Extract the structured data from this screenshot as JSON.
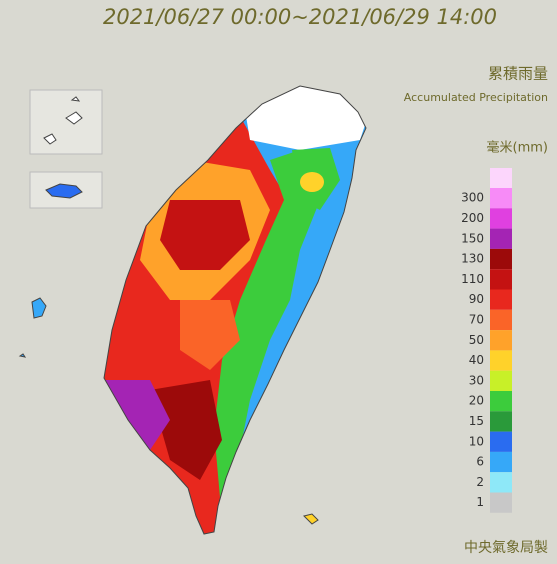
{
  "header": {
    "title": "2021/06/27 00:00~2021/06/29 14:00",
    "label_zh": "累積雨量",
    "label_en": "Accumulated Precipitation",
    "unit": "毫米(mm)"
  },
  "legend": {
    "items": [
      {
        "value": 300,
        "color": "#f78bf7"
      },
      {
        "value": 200,
        "color": "#e040e0"
      },
      {
        "value": 150,
        "color": "#a424b4"
      },
      {
        "value": 130,
        "color": "#9c0a0a"
      },
      {
        "value": 110,
        "color": "#c41212"
      },
      {
        "value": 90,
        "color": "#e8281e"
      },
      {
        "value": 70,
        "color": "#fa6428"
      },
      {
        "value": 50,
        "color": "#ffa22a"
      },
      {
        "value": 40,
        "color": "#ffd22a"
      },
      {
        "value": 30,
        "color": "#c8f028"
      },
      {
        "value": 20,
        "color": "#3ccc3c"
      },
      {
        "value": 15,
        "color": "#2a9a3a"
      },
      {
        "value": 10,
        "color": "#2a6cf0"
      },
      {
        "value": 6,
        "color": "#36a8f8"
      },
      {
        "value": 2,
        "color": "#8ee8f8"
      },
      {
        "value": 1,
        "color": "#c8c8c8"
      }
    ]
  },
  "footer": {
    "credit": "中央氣象局製"
  }
}
